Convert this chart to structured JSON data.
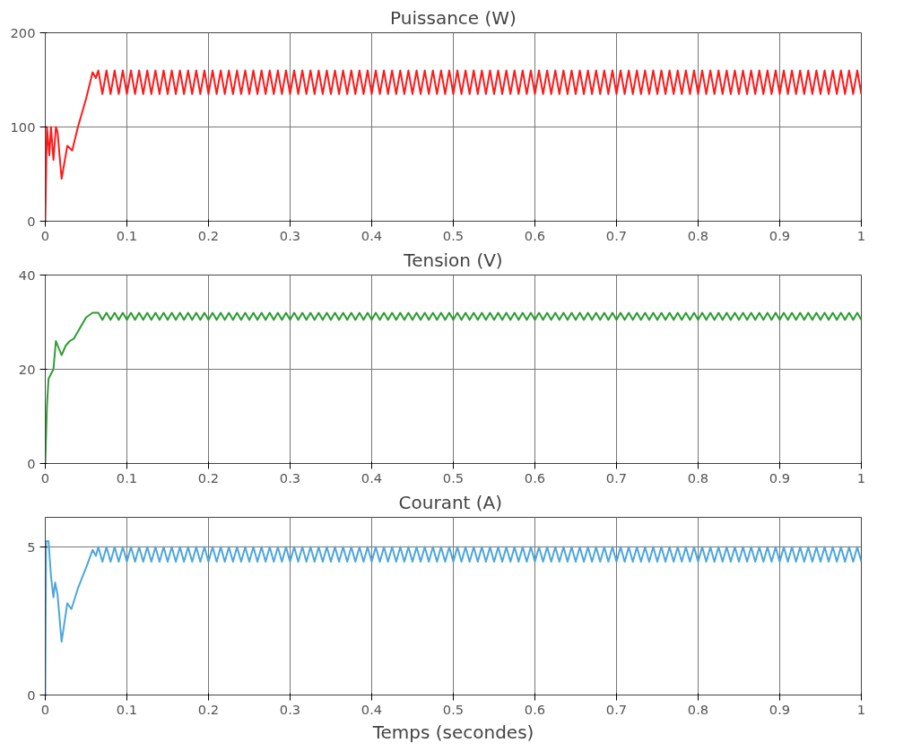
{
  "chart_data": [
    {
      "type": "line",
      "title": "Puissance (W)",
      "xlim": [
        0,
        1
      ],
      "ylim": [
        0,
        200
      ],
      "xticks": [
        0,
        0.1,
        0.2,
        0.3,
        0.4,
        0.5,
        0.6,
        0.7,
        0.8,
        0.9,
        1
      ],
      "yticks": [
        0,
        100,
        200
      ],
      "grid": true,
      "line_style": "solid",
      "series": [
        {
          "color": "#ff1a1a",
          "x": [
            0,
            0.002,
            0.005,
            0.007,
            0.01,
            0.013,
            0.015,
            0.02,
            0.027,
            0.033,
            0.04,
            0.05,
            0.058,
            0.062,
            0.065,
            0.07,
            0.075,
            0.08,
            0.085,
            0.09,
            0.095,
            0.1,
            0.105,
            0.11,
            0.115,
            0.12,
            0.125,
            0.13,
            0.135,
            0.14,
            0.145,
            0.15,
            0.155,
            0.16,
            0.165,
            0.17,
            0.175,
            0.18,
            0.185,
            0.19,
            0.195,
            0.2,
            0.205,
            0.21,
            0.215,
            0.22,
            0.225,
            0.23,
            0.235,
            0.24,
            0.245,
            0.25,
            0.255,
            0.26,
            0.265,
            0.27,
            0.275,
            0.28,
            0.285,
            0.29,
            0.295,
            0.3,
            0.305,
            0.31,
            0.315,
            0.32,
            0.325,
            0.33,
            0.335,
            0.34,
            0.345,
            0.35,
            0.355,
            0.36,
            0.365,
            0.37,
            0.375,
            0.38,
            0.385,
            0.39,
            0.395,
            0.4,
            0.405,
            0.41,
            0.415,
            0.42,
            0.425,
            0.43,
            0.435,
            0.44,
            0.445,
            0.45,
            0.455,
            0.46,
            0.465,
            0.47,
            0.475,
            0.48,
            0.485,
            0.49,
            0.495,
            0.5,
            0.505,
            0.51,
            0.515,
            0.52,
            0.525,
            0.53,
            0.535,
            0.54,
            0.545,
            0.55,
            0.555,
            0.56,
            0.565,
            0.57,
            0.575,
            0.58,
            0.585,
            0.59,
            0.595,
            0.6,
            0.605,
            0.61,
            0.615,
            0.62,
            0.625,
            0.63,
            0.635,
            0.64,
            0.645,
            0.65,
            0.655,
            0.66,
            0.665,
            0.67,
            0.675,
            0.68,
            0.685,
            0.69,
            0.695,
            0.7,
            0.705,
            0.71,
            0.715,
            0.72,
            0.725,
            0.73,
            0.735,
            0.74,
            0.745,
            0.75,
            0.755,
            0.76,
            0.765,
            0.77,
            0.775,
            0.78,
            0.785,
            0.79,
            0.795,
            0.8,
            0.805,
            0.81,
            0.815,
            0.82,
            0.825,
            0.83,
            0.835,
            0.84,
            0.845,
            0.85,
            0.855,
            0.86,
            0.865,
            0.87,
            0.875,
            0.88,
            0.885,
            0.89,
            0.895,
            0.9,
            0.905,
            0.91,
            0.915,
            0.92,
            0.925,
            0.93,
            0.935,
            0.94,
            0.945,
            0.95,
            0.955,
            0.96,
            0.965,
            0.97,
            0.975,
            0.98,
            0.985,
            0.99,
            0.995,
            1.0
          ],
          "values": [
            0,
            100,
            70,
            100,
            65,
            100,
            95,
            45,
            80,
            75,
            100,
            130,
            158,
            152,
            160,
            135,
            160,
            135,
            160,
            135,
            160,
            135,
            160,
            135,
            160,
            135,
            160,
            135,
            160,
            135,
            160,
            135,
            160,
            135,
            160,
            135,
            160,
            135,
            160,
            135,
            160,
            135,
            160,
            135,
            160,
            135,
            160,
            135,
            160,
            135,
            160,
            135,
            160,
            135,
            160,
            135,
            160,
            135,
            160,
            135,
            160,
            135,
            160,
            135,
            160,
            135,
            160,
            135,
            160,
            135,
            160,
            135,
            160,
            135,
            160,
            135,
            160,
            135,
            160,
            135,
            160,
            135,
            160,
            135,
            160,
            135,
            160,
            135,
            160,
            135,
            160,
            135,
            160,
            135,
            160,
            135,
            160,
            135,
            160,
            135,
            160,
            135,
            160,
            135,
            160,
            135,
            160,
            135,
            160,
            135,
            160,
            135,
            160,
            135,
            160,
            135,
            160,
            135,
            160,
            135,
            160,
            135,
            160,
            135,
            160,
            135,
            160,
            135,
            160,
            135,
            160,
            135,
            160,
            135,
            160,
            135,
            160,
            135,
            160,
            135,
            160,
            135,
            160,
            135,
            160,
            135,
            160,
            135,
            160,
            135,
            160,
            135,
            160,
            135,
            160,
            135,
            160,
            135,
            160,
            135,
            160,
            135,
            160,
            135,
            160,
            135,
            160,
            135,
            160,
            135,
            160,
            135,
            160,
            135,
            160,
            135,
            160,
            135,
            160,
            135,
            160,
            135,
            160,
            135,
            160,
            135,
            160,
            135,
            160,
            135,
            160,
            135,
            160,
            135,
            160,
            135,
            160,
            135,
            160,
            135,
            160,
            135
          ]
        }
      ]
    },
    {
      "type": "line",
      "title": "Tension (V)",
      "xlim": [
        0,
        1
      ],
      "ylim": [
        0,
        40
      ],
      "xticks": [
        0,
        0.1,
        0.2,
        0.3,
        0.4,
        0.5,
        0.6,
        0.7,
        0.8,
        0.9,
        1
      ],
      "yticks": [
        0,
        20,
        40
      ],
      "grid": true,
      "line_style": "solid",
      "series": [
        {
          "color": "#2e9e35",
          "x": [
            0,
            0.002,
            0.004,
            0.007,
            0.01,
            0.013,
            0.02,
            0.025,
            0.03,
            0.035,
            0.04,
            0.045,
            0.05,
            0.058,
            0.062,
            0.065,
            0.07,
            0.075,
            0.08,
            0.085,
            0.09,
            0.095,
            0.1,
            0.105,
            0.11,
            0.115,
            0.12,
            0.125,
            0.13,
            0.135,
            0.14,
            0.145,
            0.15,
            0.155,
            0.16,
            0.165,
            0.17,
            0.175,
            0.18,
            0.185,
            0.19,
            0.195,
            0.2,
            0.205,
            0.21,
            0.215,
            0.22,
            0.225,
            0.23,
            0.235,
            0.24,
            0.245,
            0.25,
            0.255,
            0.26,
            0.265,
            0.27,
            0.275,
            0.28,
            0.285,
            0.29,
            0.295,
            0.3,
            0.305,
            0.31,
            0.315,
            0.32,
            0.325,
            0.33,
            0.335,
            0.34,
            0.345,
            0.35,
            0.355,
            0.36,
            0.365,
            0.37,
            0.375,
            0.38,
            0.385,
            0.39,
            0.395,
            0.4,
            0.405,
            0.41,
            0.415,
            0.42,
            0.425,
            0.43,
            0.435,
            0.44,
            0.445,
            0.45,
            0.455,
            0.46,
            0.465,
            0.47,
            0.475,
            0.48,
            0.485,
            0.49,
            0.495,
            0.5,
            0.505,
            0.51,
            0.515,
            0.52,
            0.525,
            0.53,
            0.535,
            0.54,
            0.545,
            0.55,
            0.555,
            0.56,
            0.565,
            0.57,
            0.575,
            0.58,
            0.585,
            0.59,
            0.595,
            0.6,
            0.605,
            0.61,
            0.615,
            0.62,
            0.625,
            0.63,
            0.635,
            0.64,
            0.645,
            0.65,
            0.655,
            0.66,
            0.665,
            0.67,
            0.675,
            0.68,
            0.685,
            0.69,
            0.695,
            0.7,
            0.705,
            0.71,
            0.715,
            0.72,
            0.725,
            0.73,
            0.735,
            0.74,
            0.745,
            0.75,
            0.755,
            0.76,
            0.765,
            0.77,
            0.775,
            0.78,
            0.785,
            0.79,
            0.795,
            0.8,
            0.805,
            0.81,
            0.815,
            0.82,
            0.825,
            0.83,
            0.835,
            0.84,
            0.845,
            0.85,
            0.855,
            0.86,
            0.865,
            0.87,
            0.875,
            0.88,
            0.885,
            0.89,
            0.895,
            0.9,
            0.905,
            0.91,
            0.915,
            0.92,
            0.925,
            0.93,
            0.935,
            0.94,
            0.945,
            0.95,
            0.955,
            0.96,
            0.965,
            0.97,
            0.975,
            0.98,
            0.985,
            0.99,
            0.995,
            1.0
          ],
          "values": [
            0,
            12,
            18,
            19,
            20,
            26,
            23,
            25,
            26,
            26.5,
            28,
            29.5,
            31,
            32,
            32,
            32,
            30.5,
            32,
            30.5,
            32,
            30.5,
            32,
            30.5,
            32,
            30.5,
            32,
            30.5,
            32,
            30.5,
            32,
            30.5,
            32,
            30.5,
            32,
            30.5,
            32,
            30.5,
            32,
            30.5,
            32,
            30.5,
            32,
            30.5,
            32,
            30.5,
            32,
            30.5,
            32,
            30.5,
            32,
            30.5,
            32,
            30.5,
            32,
            30.5,
            32,
            30.5,
            32,
            30.5,
            32,
            30.5,
            32,
            30.5,
            32,
            30.5,
            32,
            30.5,
            32,
            30.5,
            32,
            30.5,
            32,
            30.5,
            32,
            30.5,
            32,
            30.5,
            32,
            30.5,
            32,
            30.5,
            32,
            30.5,
            32,
            30.5,
            32,
            30.5,
            32,
            30.5,
            32,
            30.5,
            32,
            30.5,
            32,
            30.5,
            32,
            30.5,
            32,
            30.5,
            32,
            30.5,
            32,
            30.5,
            32,
            30.5,
            32,
            30.5,
            32,
            30.5,
            32,
            30.5,
            32,
            30.5,
            32,
            30.5,
            32,
            30.5,
            32,
            30.5,
            32,
            30.5,
            32,
            30.5,
            32,
            30.5,
            32,
            30.5,
            32,
            30.5,
            32,
            30.5,
            32,
            30.5,
            32,
            30.5,
            32,
            30.5,
            32,
            30.5,
            32,
            30.5,
            32,
            30.5,
            32,
            30.5,
            32,
            30.5,
            32,
            30.5,
            32,
            30.5,
            32,
            30.5,
            32,
            30.5,
            32,
            30.5,
            32,
            30.5,
            32,
            30.5,
            32,
            30.5,
            32,
            30.5,
            32,
            30.5,
            32,
            30.5,
            32,
            30.5,
            32,
            30.5,
            32,
            30.5,
            32,
            30.5,
            32,
            30.5,
            32,
            30.5,
            32,
            30.5,
            32,
            30.5,
            32,
            30.5,
            32,
            30.5,
            32,
            30.5,
            32,
            30.5,
            32,
            30.5,
            32,
            30.5,
            32,
            30.5,
            32,
            30.5,
            32,
            30.5
          ]
        }
      ]
    },
    {
      "type": "line",
      "title": "Courant  (A)",
      "xlabel": "Temps (secondes)",
      "xlim": [
        0,
        1
      ],
      "ylim": [
        0,
        6
      ],
      "xticks": [
        0,
        0.1,
        0.2,
        0.3,
        0.4,
        0.5,
        0.6,
        0.7,
        0.8,
        0.9,
        1
      ],
      "yticks": [
        0,
        5
      ],
      "grid": true,
      "line_style": "solid",
      "series": [
        {
          "color": "#4da6dc",
          "x": [
            0,
            0.001,
            0.004,
            0.007,
            0.01,
            0.012,
            0.015,
            0.02,
            0.027,
            0.032,
            0.04,
            0.05,
            0.058,
            0.062,
            0.065,
            0.07,
            0.075,
            0.08,
            0.085,
            0.09,
            0.095,
            0.1,
            0.105,
            0.11,
            0.115,
            0.12,
            0.125,
            0.13,
            0.135,
            0.14,
            0.145,
            0.15,
            0.155,
            0.16,
            0.165,
            0.17,
            0.175,
            0.18,
            0.185,
            0.19,
            0.195,
            0.2,
            0.205,
            0.21,
            0.215,
            0.22,
            0.225,
            0.23,
            0.235,
            0.24,
            0.245,
            0.25,
            0.255,
            0.26,
            0.265,
            0.27,
            0.275,
            0.28,
            0.285,
            0.29,
            0.295,
            0.3,
            0.305,
            0.31,
            0.315,
            0.32,
            0.325,
            0.33,
            0.335,
            0.34,
            0.345,
            0.35,
            0.355,
            0.36,
            0.365,
            0.37,
            0.375,
            0.38,
            0.385,
            0.39,
            0.395,
            0.4,
            0.405,
            0.41,
            0.415,
            0.42,
            0.425,
            0.43,
            0.435,
            0.44,
            0.445,
            0.45,
            0.455,
            0.46,
            0.465,
            0.47,
            0.475,
            0.48,
            0.485,
            0.49,
            0.495,
            0.5,
            0.505,
            0.51,
            0.515,
            0.52,
            0.525,
            0.53,
            0.535,
            0.54,
            0.545,
            0.55,
            0.555,
            0.56,
            0.565,
            0.57,
            0.575,
            0.58,
            0.585,
            0.59,
            0.595,
            0.6,
            0.605,
            0.61,
            0.615,
            0.62,
            0.625,
            0.63,
            0.635,
            0.64,
            0.645,
            0.65,
            0.655,
            0.66,
            0.665,
            0.67,
            0.675,
            0.68,
            0.685,
            0.69,
            0.695,
            0.7,
            0.705,
            0.71,
            0.715,
            0.72,
            0.725,
            0.73,
            0.735,
            0.74,
            0.745,
            0.75,
            0.755,
            0.76,
            0.765,
            0.77,
            0.775,
            0.78,
            0.785,
            0.79,
            0.795,
            0.8,
            0.805,
            0.81,
            0.815,
            0.82,
            0.825,
            0.83,
            0.835,
            0.84,
            0.845,
            0.85,
            0.855,
            0.86,
            0.865,
            0.87,
            0.875,
            0.88,
            0.885,
            0.89,
            0.895,
            0.9,
            0.905,
            0.91,
            0.915,
            0.92,
            0.925,
            0.93,
            0.935,
            0.94,
            0.945,
            0.95,
            0.955,
            0.96,
            0.965,
            0.97,
            0.975,
            0.98,
            0.985,
            0.99,
            0.995,
            1.0
          ],
          "values": [
            0,
            5.2,
            5.2,
            4.0,
            3.3,
            3.8,
            3.4,
            1.8,
            3.1,
            2.9,
            3.6,
            4.3,
            4.9,
            4.7,
            5,
            4.5,
            5,
            4.5,
            5,
            4.5,
            5,
            4.5,
            5,
            4.5,
            5,
            4.5,
            5,
            4.5,
            5,
            4.5,
            5,
            4.5,
            5,
            4.5,
            5,
            4.5,
            5,
            4.5,
            5,
            4.5,
            5,
            4.5,
            5,
            4.5,
            5,
            4.5,
            5,
            4.5,
            5,
            4.5,
            5,
            4.5,
            5,
            4.5,
            5,
            4.5,
            5,
            4.5,
            5,
            4.5,
            5,
            4.5,
            5,
            4.5,
            5,
            4.5,
            5,
            4.5,
            5,
            4.5,
            5,
            4.5,
            5,
            4.5,
            5,
            4.5,
            5,
            4.5,
            5,
            4.5,
            5,
            4.5,
            5,
            4.5,
            5,
            4.5,
            5,
            4.5,
            5,
            4.5,
            5,
            4.5,
            5,
            4.5,
            5,
            4.5,
            5,
            4.5,
            5,
            4.5,
            5,
            4.5,
            5,
            4.5,
            5,
            4.5,
            5,
            4.5,
            5,
            4.5,
            5,
            4.5,
            5,
            4.5,
            5,
            4.5,
            5,
            4.5,
            5,
            4.5,
            5,
            4.5,
            5,
            4.5,
            5,
            4.5,
            5,
            4.5,
            5,
            4.5,
            5,
            4.5,
            5,
            4.5,
            5,
            4.5,
            5,
            4.5,
            5,
            4.5,
            5,
            4.5,
            5,
            4.5,
            5,
            4.5,
            5,
            4.5,
            5,
            4.5,
            5,
            4.5,
            5,
            4.5,
            5,
            4.5,
            5,
            4.5,
            5,
            4.5,
            5,
            4.5,
            5,
            4.5,
            5,
            4.5,
            5,
            4.5,
            5,
            4.5,
            5,
            4.5,
            5,
            4.5,
            5,
            4.5,
            5,
            4.5,
            5,
            4.5,
            5,
            4.5,
            5,
            4.5,
            5,
            4.5,
            5,
            4.5,
            5,
            4.5,
            5,
            4.5,
            5,
            4.5,
            5,
            4.5,
            5,
            4.5,
            5,
            4.5,
            5,
            4.5
          ]
        }
      ]
    }
  ]
}
